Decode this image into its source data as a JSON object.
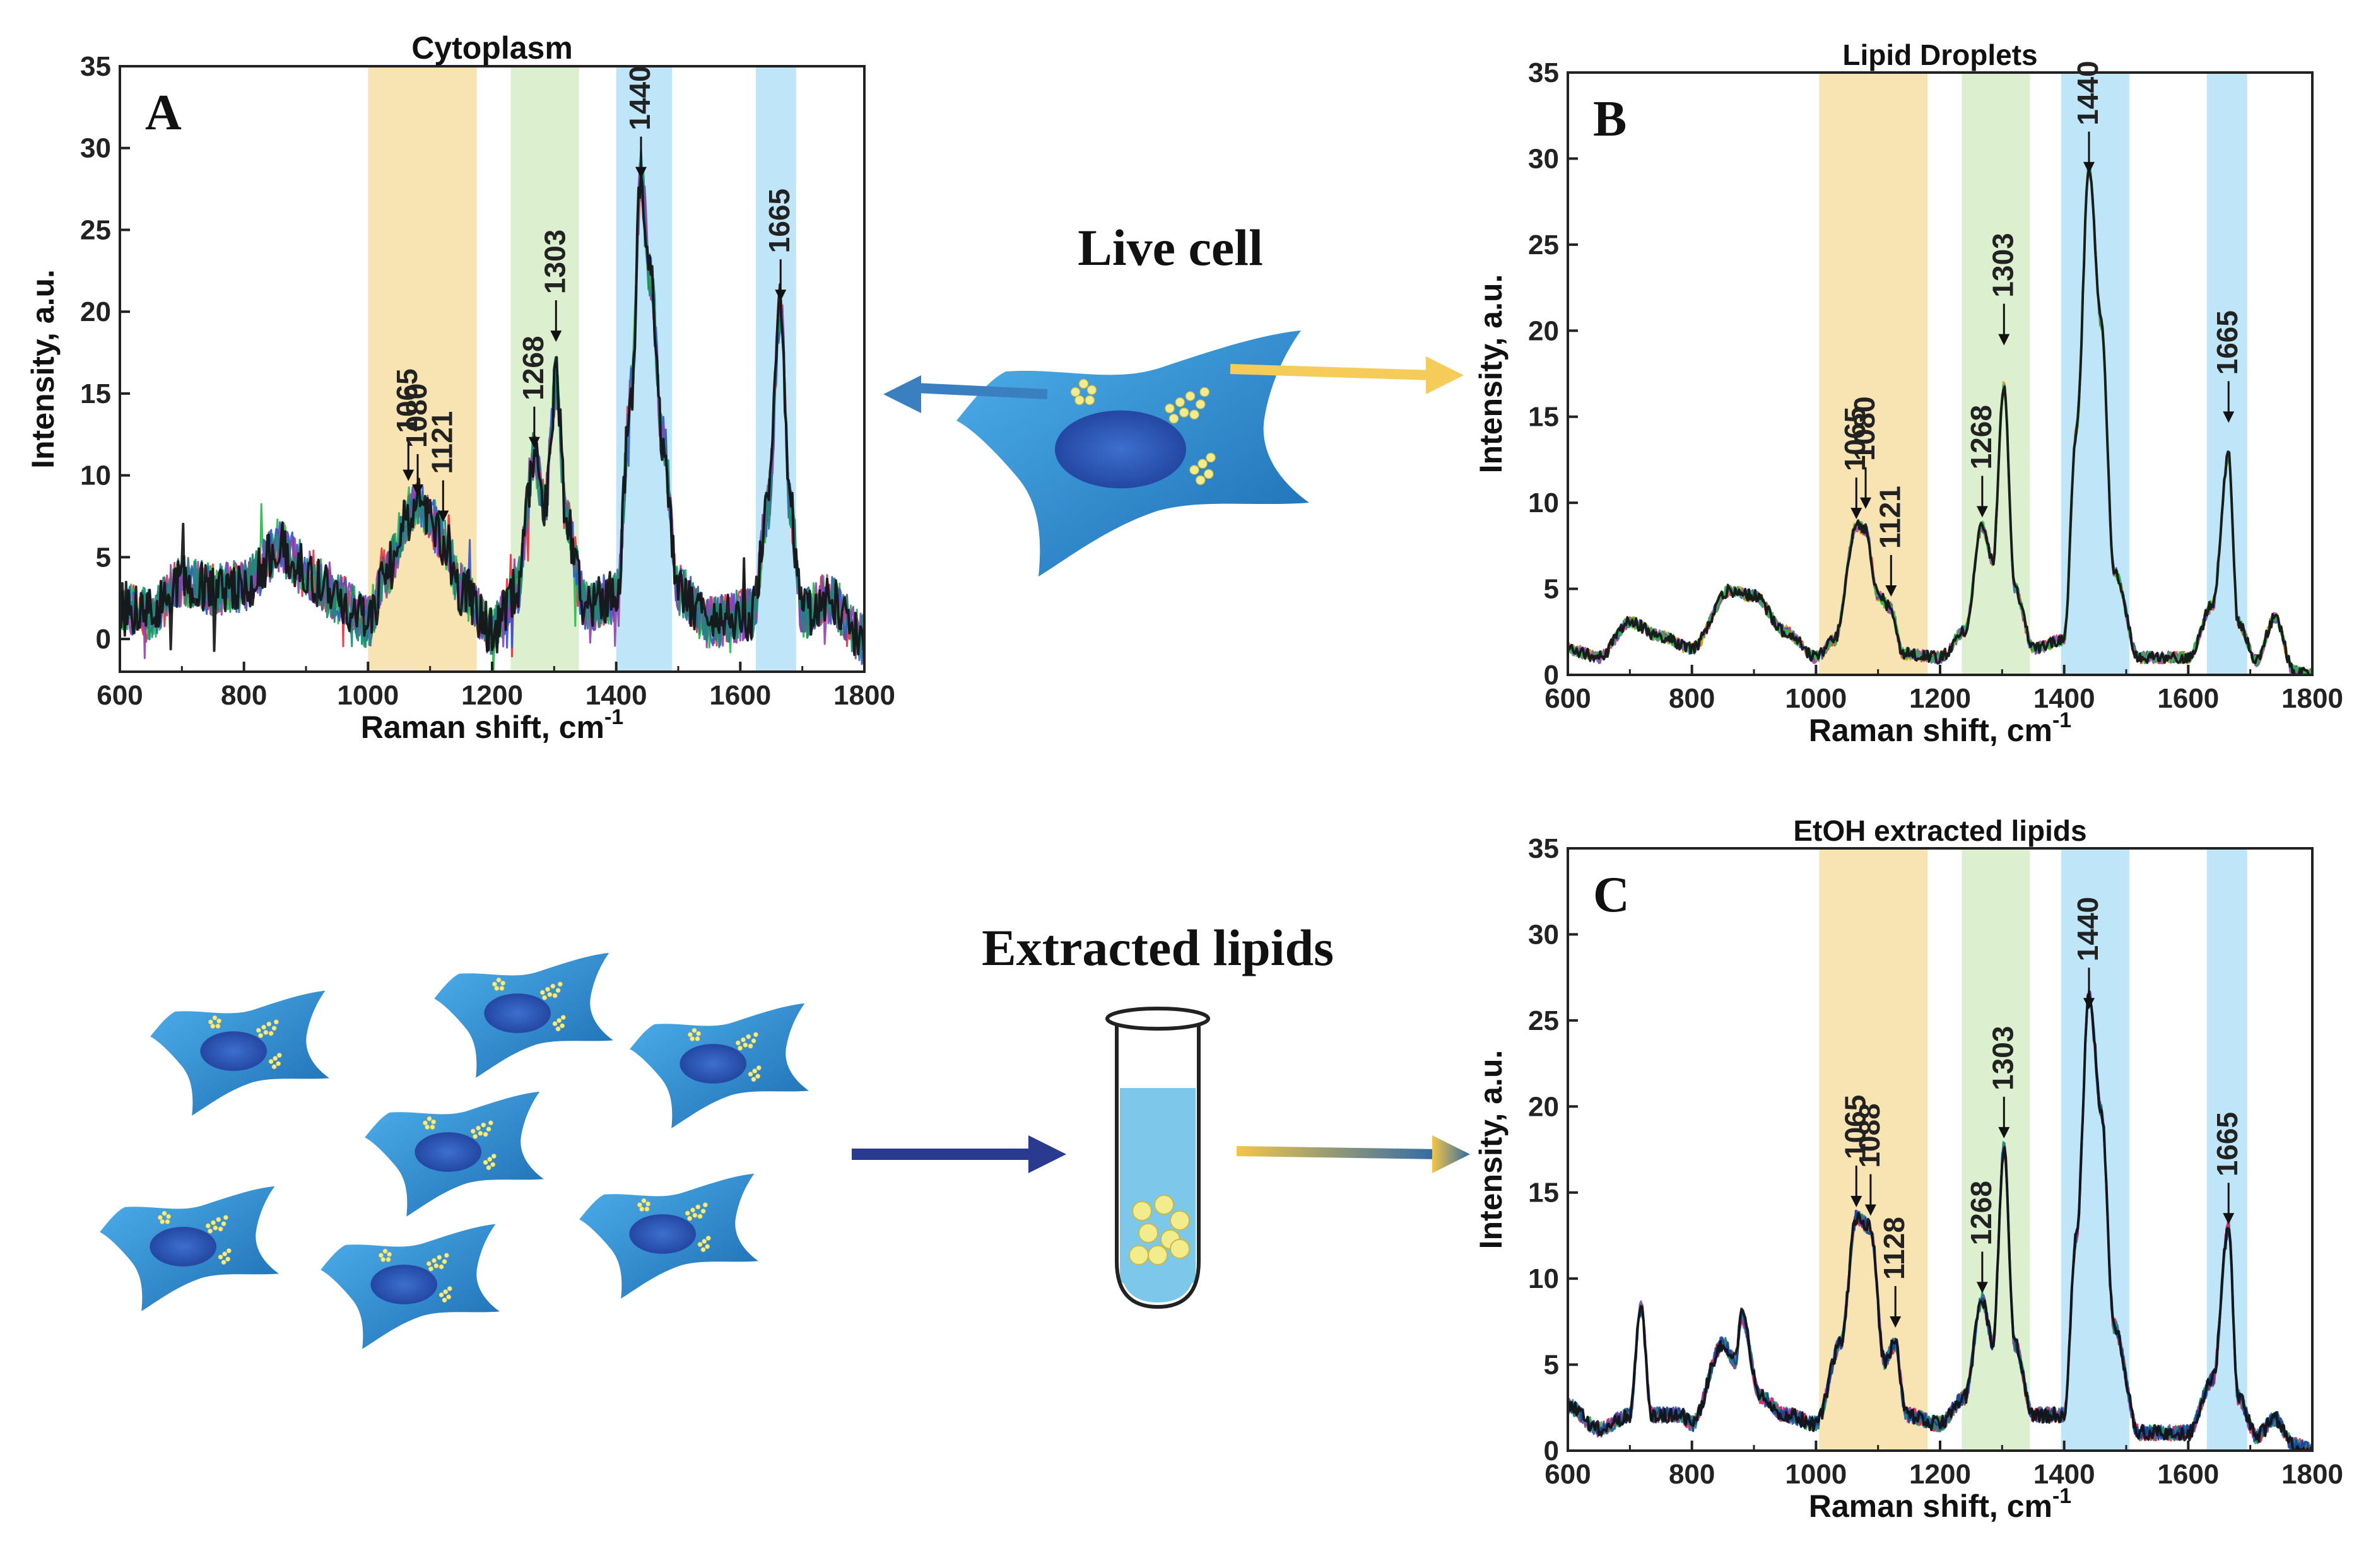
{
  "colors": {
    "band_orange": "#f8e3b3",
    "band_green": "#dcefcf",
    "band_blue": "#bfe6f8",
    "cell": "#2f8fd3",
    "cell_dark": "#1b6cb2",
    "nucleus": "#1f3f99",
    "droplet": "#f3ec8c",
    "arrow_blue": "#3a7fc0",
    "arrow_yellow": "#f5cc5a",
    "arrow_navy": "#2a3a8e",
    "tube_liquid": "#7cc8ea"
  },
  "labels": {
    "live_cell": "Live cell",
    "extracted_lipids": "Extracted lipids"
  },
  "chart_data": [
    {
      "id": "A",
      "type": "line",
      "panel_letter": "A",
      "title": "Cytoplasm",
      "xlabel": "Raman shift, cm",
      "xlabel_sup": "-1",
      "ylabel": "Intensity, a.u.",
      "xlim": [
        600,
        1800
      ],
      "ylim": [
        -2,
        35
      ],
      "xticks": [
        600,
        800,
        1000,
        1200,
        1400,
        1600,
        1800
      ],
      "yticks": [
        0,
        5,
        10,
        15,
        20,
        25,
        30,
        35
      ],
      "bands": [
        {
          "from": 1000,
          "to": 1175,
          "color": "orange"
        },
        {
          "from": 1230,
          "to": 1340,
          "color": "green"
        },
        {
          "from": 1400,
          "to": 1490,
          "color": "blue"
        },
        {
          "from": 1625,
          "to": 1690,
          "color": "blue"
        }
      ],
      "peaks": [
        {
          "x": 1065,
          "label": "1065",
          "y": 9.5
        },
        {
          "x": 1080,
          "label": "1080",
          "y": 8.6
        },
        {
          "x": 1121,
          "label": "1121",
          "y": 7.0
        },
        {
          "x": 1268,
          "label": "1268",
          "y": 11.5
        },
        {
          "x": 1303,
          "label": "1303",
          "y": 18.0
        },
        {
          "x": 1440,
          "label": "1440",
          "y": 28.0
        },
        {
          "x": 1665,
          "label": "1665",
          "y": 20.5
        }
      ],
      "series_profile": [
        [
          600,
          2.0
        ],
        [
          650,
          1.5
        ],
        [
          700,
          3.5
        ],
        [
          750,
          3.0
        ],
        [
          800,
          3.2
        ],
        [
          860,
          5.5
        ],
        [
          900,
          4.0
        ],
        [
          950,
          2.5
        ],
        [
          1000,
          1.0
        ],
        [
          1030,
          4.0
        ],
        [
          1065,
          7.5
        ],
        [
          1080,
          8.5
        ],
        [
          1100,
          7.0
        ],
        [
          1121,
          6.0
        ],
        [
          1150,
          3.0
        ],
        [
          1200,
          0.5
        ],
        [
          1240,
          3.0
        ],
        [
          1268,
          11.0
        ],
        [
          1285,
          8.0
        ],
        [
          1303,
          15.5
        ],
        [
          1320,
          7.0
        ],
        [
          1350,
          2.0
        ],
        [
          1400,
          2.5
        ],
        [
          1425,
          15.0
        ],
        [
          1440,
          28.0
        ],
        [
          1455,
          22.0
        ],
        [
          1475,
          12.0
        ],
        [
          1500,
          3.0
        ],
        [
          1550,
          1.0
        ],
        [
          1620,
          1.5
        ],
        [
          1645,
          8.0
        ],
        [
          1665,
          20.0
        ],
        [
          1680,
          8.0
        ],
        [
          1700,
          1.5
        ],
        [
          1740,
          2.5
        ],
        [
          1800,
          0.0
        ]
      ],
      "series_colors": [
        "#e5303d",
        "#28b84a",
        "#3355cc",
        "#8e44ad",
        "#1d8a77",
        "#111111"
      ]
    },
    {
      "id": "B",
      "type": "line",
      "panel_letter": "B",
      "title": "Lipid Droplets",
      "xlabel": "Raman shift, cm",
      "xlabel_sup": "-1",
      "ylabel": "Intensity, a.u.",
      "xlim": [
        600,
        1800
      ],
      "ylim": [
        0,
        35
      ],
      "xticks": [
        600,
        800,
        1000,
        1200,
        1400,
        1600,
        1800
      ],
      "yticks": [
        0,
        5,
        10,
        15,
        20,
        25,
        30,
        35
      ],
      "bands": [
        {
          "from": 1005,
          "to": 1180,
          "color": "orange"
        },
        {
          "from": 1235,
          "to": 1345,
          "color": "green"
        },
        {
          "from": 1395,
          "to": 1505,
          "color": "blue"
        },
        {
          "from": 1630,
          "to": 1695,
          "color": "blue"
        }
      ],
      "peaks": [
        {
          "x": 1065,
          "label": "1065",
          "y": 8.9
        },
        {
          "x": 1080,
          "label": "1080",
          "y": 9.5
        },
        {
          "x": 1121,
          "label": "1121",
          "y": 4.4
        },
        {
          "x": 1268,
          "label": "1268",
          "y": 9.0
        },
        {
          "x": 1303,
          "label": "1303",
          "y": 19.0
        },
        {
          "x": 1440,
          "label": "1440",
          "y": 29.0
        },
        {
          "x": 1665,
          "label": "1665",
          "y": 14.5
        }
      ],
      "series_profile": [
        [
          600,
          1.5
        ],
        [
          650,
          1.0
        ],
        [
          700,
          3.0
        ],
        [
          750,
          2.2
        ],
        [
          800,
          1.5
        ],
        [
          860,
          4.8
        ],
        [
          900,
          4.5
        ],
        [
          950,
          2.5
        ],
        [
          1000,
          1.0
        ],
        [
          1030,
          2.0
        ],
        [
          1065,
          8.5
        ],
        [
          1080,
          8.3
        ],
        [
          1100,
          4.5
        ],
        [
          1121,
          3.8
        ],
        [
          1140,
          1.2
        ],
        [
          1200,
          1.0
        ],
        [
          1240,
          2.5
        ],
        [
          1268,
          8.5
        ],
        [
          1285,
          6.5
        ],
        [
          1303,
          16.5
        ],
        [
          1320,
          5.0
        ],
        [
          1350,
          1.5
        ],
        [
          1400,
          2.0
        ],
        [
          1420,
          14.0
        ],
        [
          1440,
          29.0
        ],
        [
          1460,
          20.0
        ],
        [
          1480,
          6.0
        ],
        [
          1520,
          1.0
        ],
        [
          1600,
          1.0
        ],
        [
          1640,
          4.0
        ],
        [
          1665,
          12.5
        ],
        [
          1680,
          3.0
        ],
        [
          1710,
          0.8
        ],
        [
          1740,
          3.3
        ],
        [
          1770,
          0.2
        ],
        [
          1800,
          0.0
        ]
      ],
      "series_colors": [
        "#e5303d",
        "#cda200",
        "#3355cc",
        "#9b59b6",
        "#28b84a",
        "#111111"
      ]
    },
    {
      "id": "C",
      "type": "line",
      "panel_letter": "C",
      "title": "EtOH extracted lipids",
      "xlabel": "Raman shift, cm",
      "xlabel_sup": "-1",
      "ylabel": "Intensity, a.u.",
      "xlim": [
        600,
        1800
      ],
      "ylim": [
        0,
        35
      ],
      "xticks": [
        600,
        800,
        1000,
        1200,
        1400,
        1600,
        1800
      ],
      "yticks": [
        0,
        5,
        10,
        15,
        20,
        25,
        30,
        35
      ],
      "bands": [
        {
          "from": 1005,
          "to": 1180,
          "color": "orange"
        },
        {
          "from": 1235,
          "to": 1345,
          "color": "green"
        },
        {
          "from": 1395,
          "to": 1505,
          "color": "blue"
        },
        {
          "from": 1630,
          "to": 1695,
          "color": "blue"
        }
      ],
      "peaks": [
        {
          "x": 1065,
          "label": "1065",
          "y": 14.0
        },
        {
          "x": 1088,
          "label": "1088",
          "y": 13.5
        },
        {
          "x": 1128,
          "label": "1128",
          "y": 7.0
        },
        {
          "x": 1268,
          "label": "1268",
          "y": 9.0
        },
        {
          "x": 1303,
          "label": "1303",
          "y": 18.0
        },
        {
          "x": 1440,
          "label": "1440",
          "y": 25.5
        },
        {
          "x": 1665,
          "label": "1665",
          "y": 13.0
        }
      ],
      "series_profile": [
        [
          600,
          2.5
        ],
        [
          650,
          1.2
        ],
        [
          700,
          2.0
        ],
        [
          718,
          8.0
        ],
        [
          735,
          2.0
        ],
        [
          780,
          2.0
        ],
        [
          800,
          1.5
        ],
        [
          850,
          6.0
        ],
        [
          870,
          5.0
        ],
        [
          880,
          7.5
        ],
        [
          910,
          3.0
        ],
        [
          950,
          2.0
        ],
        [
          1000,
          1.5
        ],
        [
          1040,
          6.0
        ],
        [
          1065,
          13.0
        ],
        [
          1088,
          12.5
        ],
        [
          1110,
          5.0
        ],
        [
          1128,
          6.0
        ],
        [
          1145,
          2.0
        ],
        [
          1200,
          1.5
        ],
        [
          1240,
          3.0
        ],
        [
          1268,
          8.5
        ],
        [
          1285,
          6.0
        ],
        [
          1303,
          17.0
        ],
        [
          1320,
          6.0
        ],
        [
          1350,
          2.0
        ],
        [
          1400,
          2.0
        ],
        [
          1420,
          12.0
        ],
        [
          1440,
          25.5
        ],
        [
          1460,
          19.0
        ],
        [
          1480,
          7.0
        ],
        [
          1520,
          1.0
        ],
        [
          1600,
          1.0
        ],
        [
          1640,
          4.0
        ],
        [
          1665,
          12.5
        ],
        [
          1680,
          3.0
        ],
        [
          1710,
          0.8
        ],
        [
          1740,
          1.8
        ],
        [
          1770,
          0.3
        ],
        [
          1800,
          0.0
        ]
      ],
      "series_colors": [
        "#e5303d",
        "#28b84a",
        "#3355cc",
        "#8e44ad",
        "#e91e63",
        "#1d8a77",
        "#0d47a1",
        "#111111"
      ]
    }
  ]
}
